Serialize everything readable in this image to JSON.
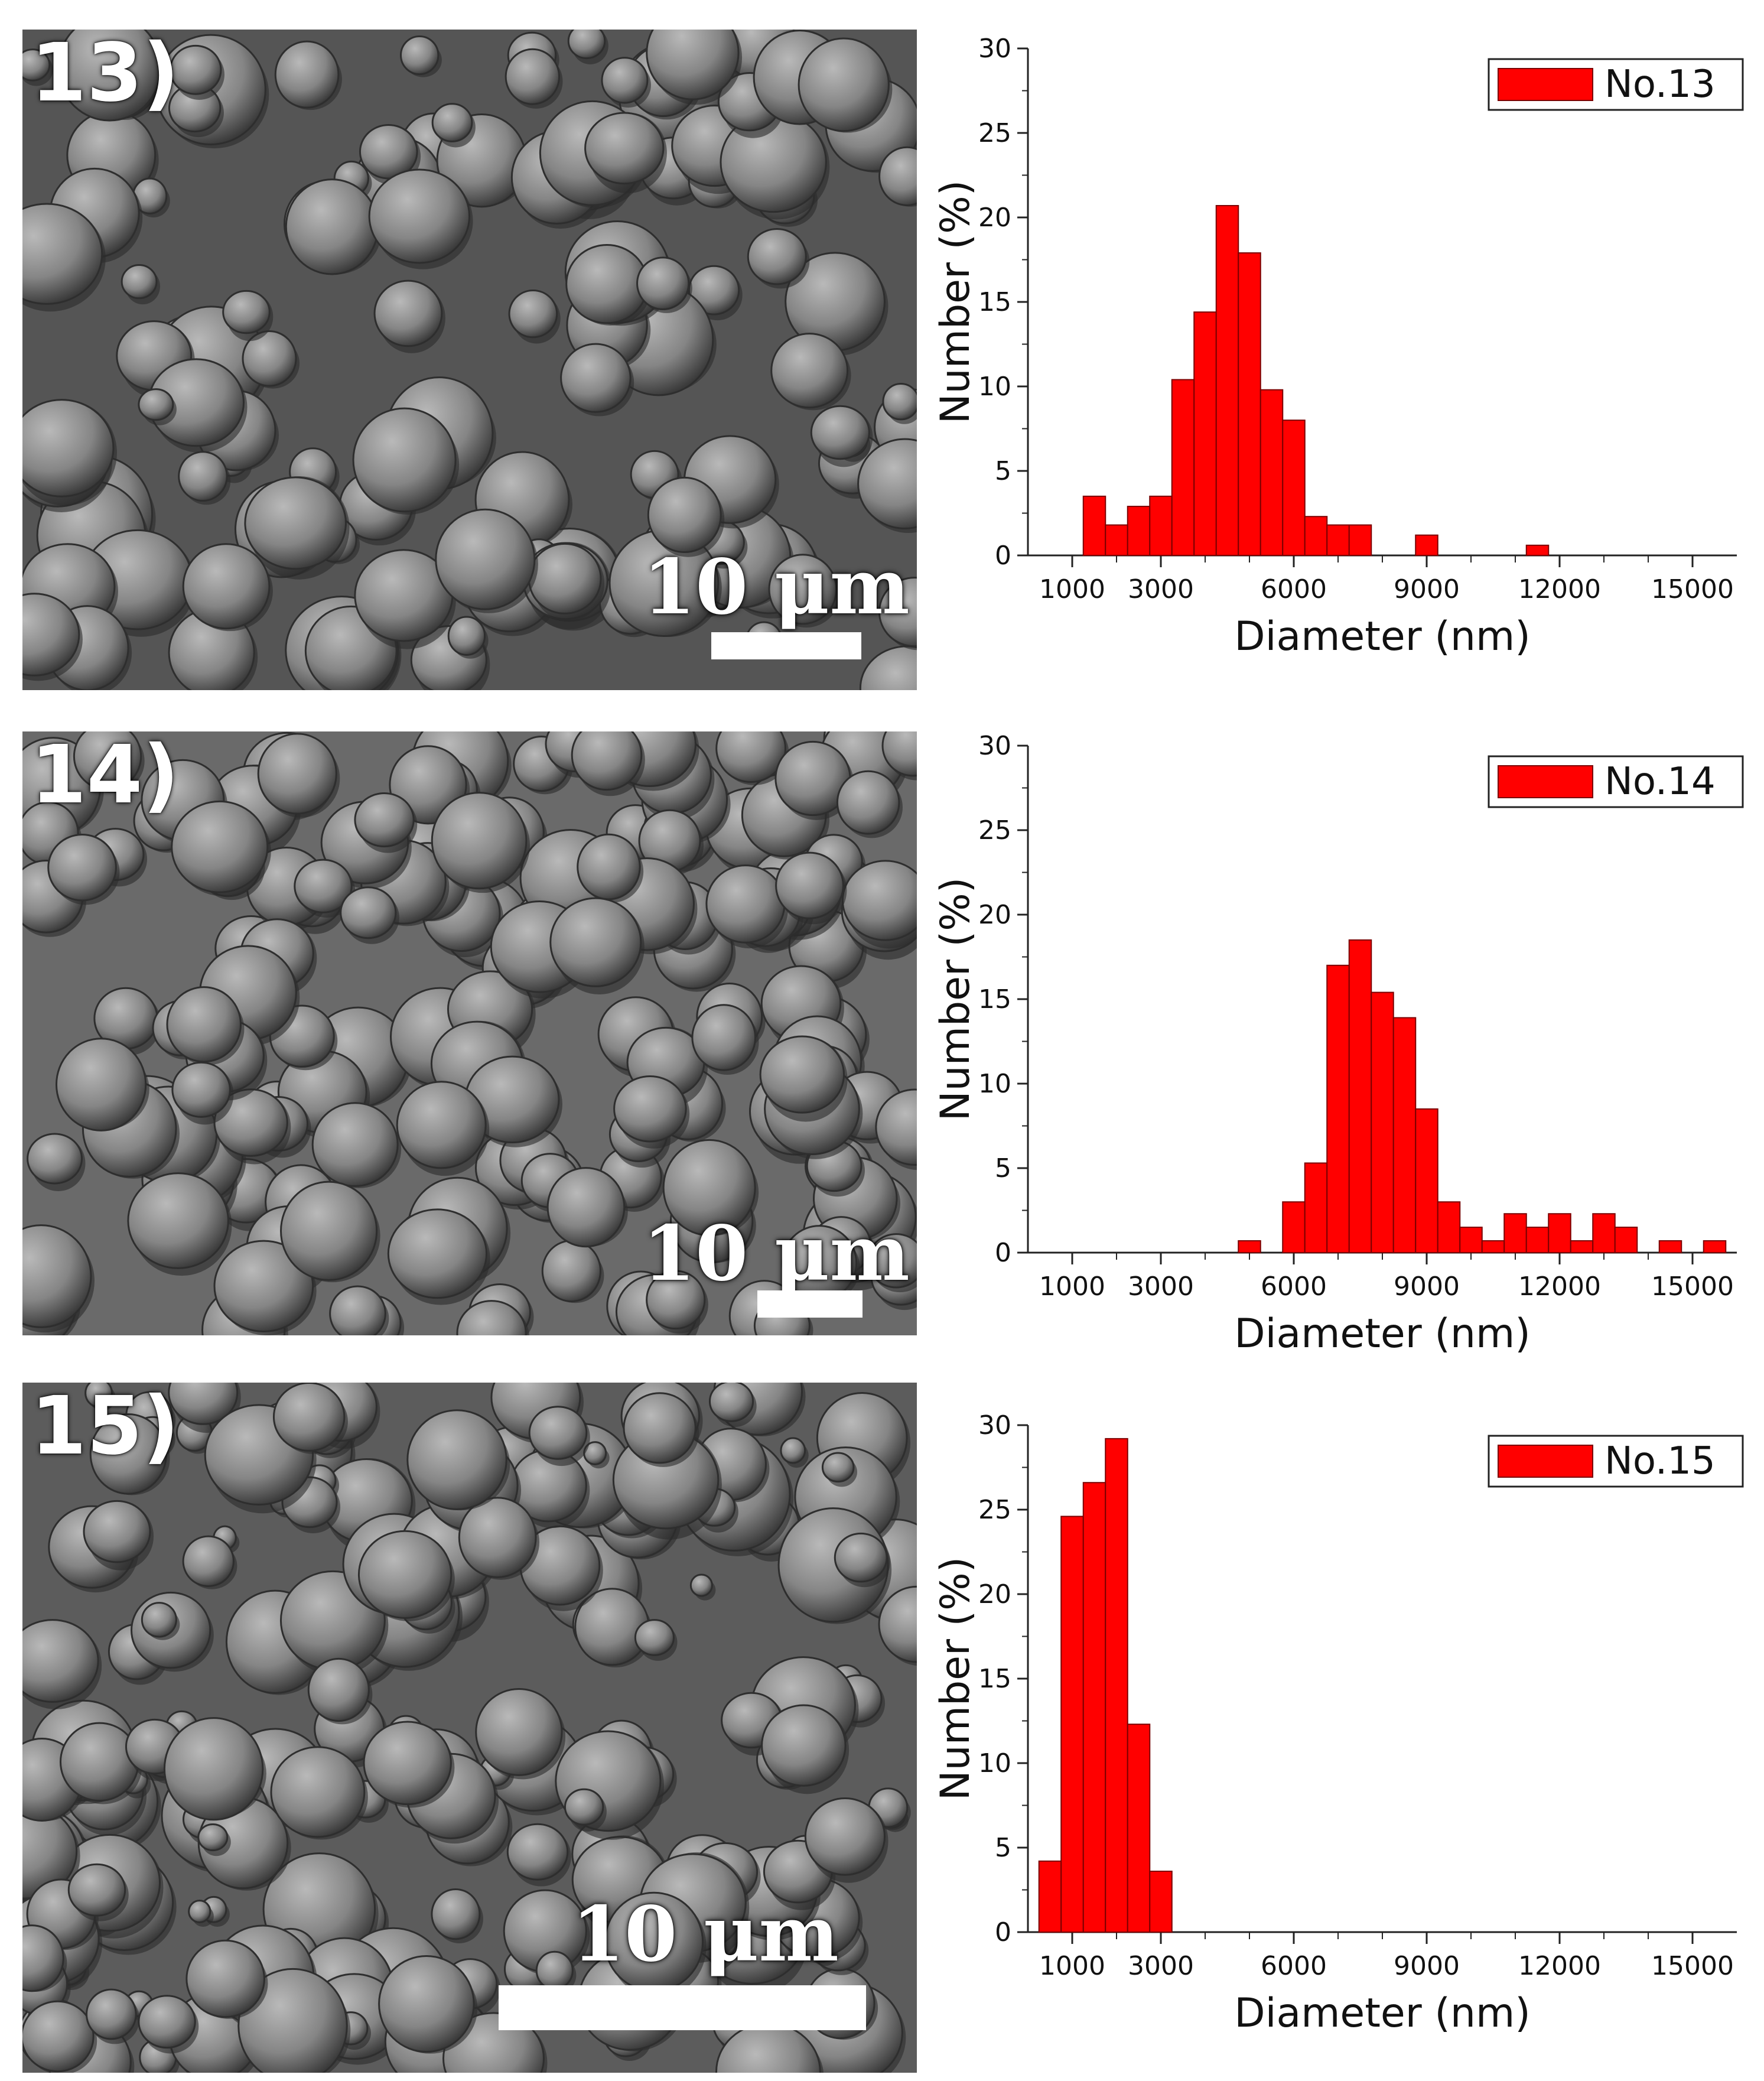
{
  "colors": {
    "bar": "#ff0000",
    "bar_edge": "#7a0000",
    "axis": "#222222"
  },
  "panels": [
    {
      "label": "13)",
      "scale_label": "10 μm",
      "chart_data": {
        "type": "bar",
        "xlabel": "Diameter (nm)",
        "ylabel": "Number (%)",
        "xlim": [
          0,
          16000
        ],
        "ylim": [
          0,
          30
        ],
        "xticks": [
          "1000",
          "3000",
          "6000",
          "9000",
          "12000",
          "15000"
        ],
        "yticks": [
          "0",
          "5",
          "10",
          "15",
          "20",
          "25",
          "30"
        ],
        "legend": "No.13",
        "legend_position": "top-right",
        "bin_width": 500,
        "x": [
          1500,
          2000,
          2500,
          3000,
          3500,
          4000,
          4500,
          5000,
          5500,
          6000,
          6500,
          7000,
          7500,
          9000,
          11500
        ],
        "values": [
          3.5,
          1.8,
          2.9,
          3.5,
          10.4,
          14.4,
          20.7,
          17.9,
          9.8,
          8.0,
          2.3,
          1.8,
          1.8,
          1.2,
          0.6
        ]
      }
    },
    {
      "label": "14)",
      "scale_label": "10 μm",
      "chart_data": {
        "type": "bar",
        "xlabel": "Diameter (nm)",
        "ylabel": "Number (%)",
        "xlim": [
          0,
          16000
        ],
        "ylim": [
          0,
          30
        ],
        "xticks": [
          "1000",
          "3000",
          "6000",
          "9000",
          "12000",
          "15000"
        ],
        "yticks": [
          "0",
          "5",
          "10",
          "15",
          "20",
          "25",
          "30"
        ],
        "legend": "No.14",
        "legend_position": "top-right",
        "bin_width": 500,
        "x": [
          5000,
          6000,
          6500,
          7000,
          7500,
          8000,
          8500,
          9000,
          9500,
          10000,
          10500,
          11000,
          11500,
          12000,
          12500,
          13000,
          13500,
          14500,
          15500
        ],
        "values": [
          0.7,
          3.0,
          5.3,
          17.0,
          18.5,
          15.4,
          13.9,
          8.5,
          3.0,
          1.5,
          0.7,
          2.3,
          1.5,
          2.3,
          0.7,
          2.3,
          1.5,
          0.7,
          0.7
        ]
      }
    },
    {
      "label": "15)",
      "scale_label": "10 μm",
      "chart_data": {
        "type": "bar",
        "xlabel": "Diameter (nm)",
        "ylabel": "Number (%)",
        "xlim": [
          0,
          16000
        ],
        "ylim": [
          0,
          30
        ],
        "xticks": [
          "1000",
          "3000",
          "6000",
          "9000",
          "12000",
          "15000"
        ],
        "yticks": [
          "0",
          "5",
          "10",
          "15",
          "20",
          "25",
          "30"
        ],
        "legend": "No.15",
        "legend_position": "top-right",
        "bin_width": 500,
        "x": [
          500,
          1000,
          1500,
          2000,
          2500,
          3000
        ],
        "values": [
          4.2,
          24.6,
          26.6,
          29.2,
          12.3,
          3.6
        ]
      }
    }
  ]
}
